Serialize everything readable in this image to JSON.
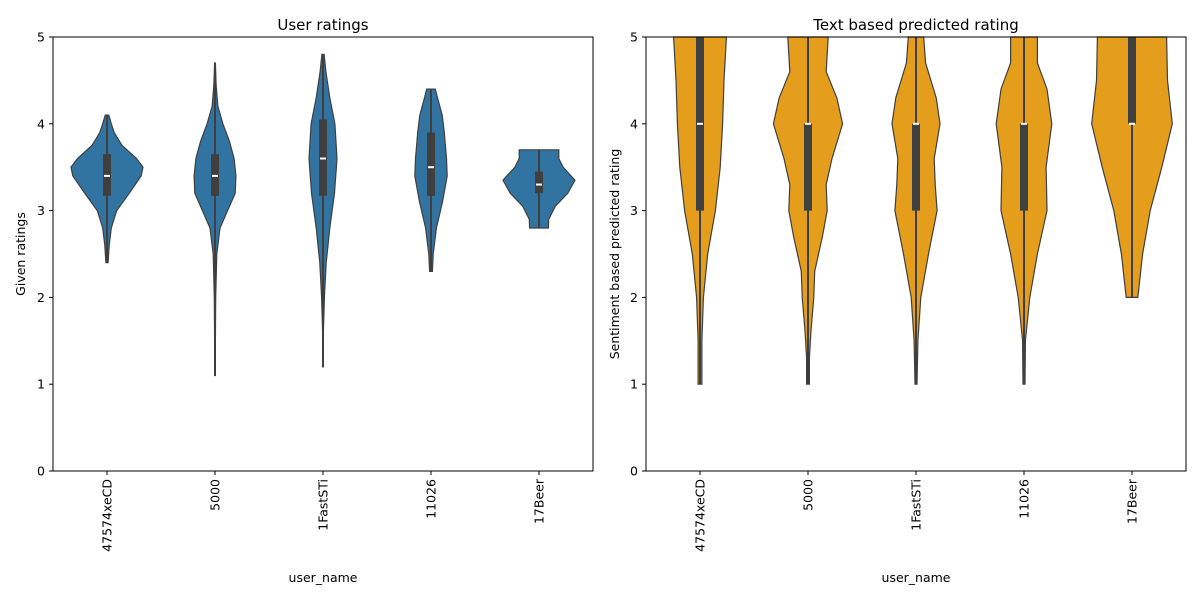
{
  "chart_data": [
    {
      "type": "violin",
      "title": "User ratings",
      "xlabel": "user_name",
      "ylabel": "Given ratings",
      "ylim": [
        0,
        5
      ],
      "yticks": [
        0,
        1,
        2,
        3,
        4,
        5
      ],
      "categories": [
        "47574xeCD",
        "5000",
        "1FastSTi",
        "11026",
        "17Beer"
      ],
      "color": "#3274a1",
      "grid": false,
      "violins": [
        {
          "min": 2.4,
          "q1": 3.17,
          "median": 3.4,
          "q3": 3.65,
          "max": 4.1,
          "profile": [
            [
              2.4,
              0.03
            ],
            [
              2.6,
              0.06
            ],
            [
              2.8,
              0.12
            ],
            [
              3.0,
              0.27
            ],
            [
              3.2,
              0.62
            ],
            [
              3.4,
              0.95
            ],
            [
              3.5,
              1.0
            ],
            [
              3.6,
              0.82
            ],
            [
              3.75,
              0.42
            ],
            [
              3.9,
              0.2
            ],
            [
              4.0,
              0.12
            ],
            [
              4.1,
              0.05
            ]
          ]
        },
        {
          "min": 1.1,
          "q1": 3.17,
          "median": 3.4,
          "q3": 3.65,
          "max": 4.7,
          "profile": [
            [
              1.1,
              0.01
            ],
            [
              1.5,
              0.01
            ],
            [
              2.0,
              0.02
            ],
            [
              2.5,
              0.05
            ],
            [
              2.8,
              0.14
            ],
            [
              3.0,
              0.35
            ],
            [
              3.2,
              0.56
            ],
            [
              3.4,
              0.58
            ],
            [
              3.6,
              0.53
            ],
            [
              3.8,
              0.4
            ],
            [
              4.0,
              0.22
            ],
            [
              4.2,
              0.08
            ],
            [
              4.45,
              0.03
            ],
            [
              4.7,
              0.01
            ]
          ]
        },
        {
          "min": 1.2,
          "q1": 3.17,
          "median": 3.6,
          "q3": 4.05,
          "max": 4.8,
          "profile": [
            [
              1.2,
              0.01
            ],
            [
              1.6,
              0.01
            ],
            [
              2.0,
              0.04
            ],
            [
              2.4,
              0.09
            ],
            [
              2.8,
              0.19
            ],
            [
              3.2,
              0.32
            ],
            [
              3.6,
              0.39
            ],
            [
              4.0,
              0.33
            ],
            [
              4.3,
              0.19
            ],
            [
              4.6,
              0.08
            ],
            [
              4.8,
              0.03
            ]
          ]
        },
        {
          "min": 2.3,
          "q1": 3.17,
          "median": 3.5,
          "q3": 3.9,
          "max": 4.4,
          "profile": [
            [
              2.3,
              0.04
            ],
            [
              2.5,
              0.06
            ],
            [
              2.8,
              0.15
            ],
            [
              3.1,
              0.32
            ],
            [
              3.4,
              0.45
            ],
            [
              3.6,
              0.43
            ],
            [
              3.9,
              0.37
            ],
            [
              4.1,
              0.31
            ],
            [
              4.3,
              0.18
            ],
            [
              4.4,
              0.12
            ]
          ]
        },
        {
          "min": 2.8,
          "q1": 3.2,
          "median": 3.3,
          "q3": 3.45,
          "max": 3.7,
          "profile": [
            [
              2.8,
              0.26
            ],
            [
              2.9,
              0.27
            ],
            [
              3.05,
              0.45
            ],
            [
              3.2,
              0.8
            ],
            [
              3.35,
              1.0
            ],
            [
              3.5,
              0.67
            ],
            [
              3.6,
              0.55
            ],
            [
              3.7,
              0.55
            ]
          ]
        }
      ]
    },
    {
      "type": "violin",
      "title": "Text based predicted rating",
      "xlabel": "user_name",
      "ylabel": "Sentiment based predicted rating",
      "ylim": [
        0,
        5
      ],
      "yticks": [
        0,
        1,
        2,
        3,
        4,
        5
      ],
      "categories": [
        "47574xeCD",
        "5000",
        "1FastSTi",
        "11026",
        "17Beer"
      ],
      "color": "#e49e1b",
      "grid": false,
      "violins": [
        {
          "min": 1,
          "q1": 3,
          "median": 4,
          "q3": 5,
          "max": 5,
          "profile": [
            [
              1.0,
              0.04
            ],
            [
              1.5,
              0.04
            ],
            [
              2.0,
              0.07
            ],
            [
              2.5,
              0.16
            ],
            [
              3.0,
              0.32
            ],
            [
              3.5,
              0.42
            ],
            [
              4.0,
              0.47
            ],
            [
              4.5,
              0.5
            ],
            [
              5.0,
              0.55
            ]
          ]
        },
        {
          "min": 1,
          "q1": 3,
          "median": 4,
          "q3": 4,
          "max": 5,
          "profile": [
            [
              1.0,
              0.03
            ],
            [
              1.3,
              0.03
            ],
            [
              1.6,
              0.06
            ],
            [
              2.0,
              0.12
            ],
            [
              2.3,
              0.14
            ],
            [
              2.7,
              0.3
            ],
            [
              3.0,
              0.4
            ],
            [
              3.3,
              0.38
            ],
            [
              3.6,
              0.5
            ],
            [
              4.0,
              0.72
            ],
            [
              4.3,
              0.6
            ],
            [
              4.6,
              0.38
            ],
            [
              5.0,
              0.42
            ]
          ]
        },
        {
          "min": 1,
          "q1": 3,
          "median": 4,
          "q3": 4,
          "max": 5,
          "profile": [
            [
              1.0,
              0.02
            ],
            [
              1.5,
              0.04
            ],
            [
              2.0,
              0.1
            ],
            [
              2.5,
              0.26
            ],
            [
              3.0,
              0.44
            ],
            [
              3.3,
              0.4
            ],
            [
              3.6,
              0.38
            ],
            [
              4.0,
              0.5
            ],
            [
              4.3,
              0.42
            ],
            [
              4.7,
              0.2
            ],
            [
              5.0,
              0.16
            ]
          ]
        },
        {
          "min": 1,
          "q1": 3,
          "median": 4,
          "q3": 4,
          "max": 5,
          "profile": [
            [
              1.0,
              0.02
            ],
            [
              1.5,
              0.03
            ],
            [
              2.0,
              0.12
            ],
            [
              2.5,
              0.28
            ],
            [
              3.0,
              0.48
            ],
            [
              3.5,
              0.46
            ],
            [
              4.0,
              0.58
            ],
            [
              4.4,
              0.48
            ],
            [
              4.7,
              0.28
            ],
            [
              5.0,
              0.28
            ]
          ]
        },
        {
          "min": 2,
          "q1": 4,
          "median": 4,
          "q3": 5,
          "max": 5,
          "profile": [
            [
              2.0,
              0.12
            ],
            [
              2.5,
              0.22
            ],
            [
              3.0,
              0.38
            ],
            [
              3.5,
              0.62
            ],
            [
              4.0,
              0.84
            ],
            [
              4.5,
              0.74
            ],
            [
              5.0,
              0.72
            ]
          ]
        }
      ]
    }
  ]
}
